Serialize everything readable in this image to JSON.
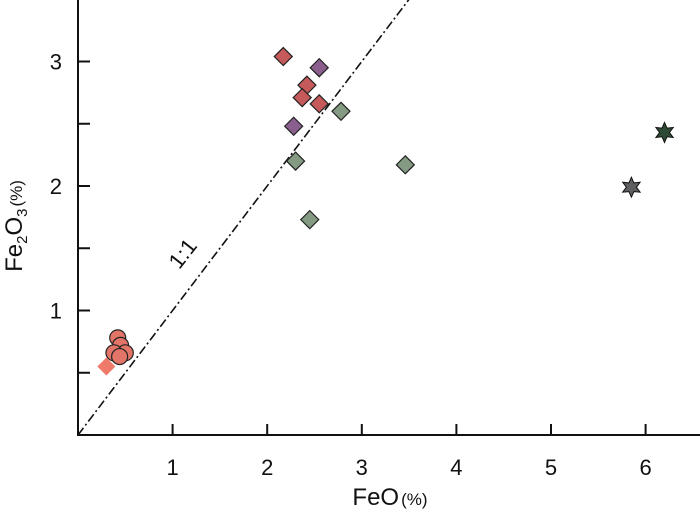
{
  "chart_data": {
    "type": "scatter",
    "title": "",
    "xlabel": {
      "text": "FeO",
      "unit": "(%)"
    },
    "ylabel": {
      "base": "Fe",
      "sub1": "2",
      "mid": "O",
      "sub2": "3",
      "unit": "(%)"
    },
    "xlim": [
      0,
      6.4
    ],
    "ylim": [
      0,
      3.5
    ],
    "xticks": [
      1,
      2,
      3,
      4,
      5,
      6
    ],
    "xtick_labels": [
      "1",
      "2",
      "3",
      "4",
      "5",
      "6"
    ],
    "yticks": [
      0.5,
      1,
      1.5,
      2,
      2.5,
      3
    ],
    "ytick_labels": [
      "",
      "1",
      "",
      "2",
      "",
      "3"
    ],
    "grid": false,
    "reference_line": {
      "label": "1:1",
      "slope": 1,
      "intercept": 0
    },
    "series": [
      {
        "marker": "circle",
        "color": "#e27468",
        "points": [
          [
            0.42,
            0.78
          ],
          [
            0.45,
            0.72
          ],
          [
            0.5,
            0.66
          ],
          [
            0.38,
            0.66
          ],
          [
            0.44,
            0.63
          ]
        ]
      },
      {
        "marker": "diamond",
        "color": "#f07a6a",
        "stroke": "none",
        "points": [
          [
            0.3,
            0.55
          ]
        ]
      },
      {
        "marker": "diamond",
        "color": "#c65a5a",
        "points": [
          [
            2.17,
            3.04
          ],
          [
            2.42,
            2.81
          ],
          [
            2.37,
            2.71
          ],
          [
            2.55,
            2.66
          ]
        ]
      },
      {
        "marker": "diamond",
        "color": "#8a5f8e",
        "points": [
          [
            2.55,
            2.95
          ],
          [
            2.28,
            2.48
          ]
        ]
      },
      {
        "marker": "diamond",
        "color": "#849a82",
        "points": [
          [
            2.78,
            2.6
          ],
          [
            2.3,
            2.2
          ],
          [
            3.46,
            2.17
          ],
          [
            2.45,
            1.73
          ]
        ]
      },
      {
        "marker": "star",
        "color": "#5e5e60",
        "points": [
          [
            5.85,
            1.99
          ]
        ]
      },
      {
        "marker": "star",
        "color": "#2e4a34",
        "points": [
          [
            6.2,
            2.43
          ]
        ]
      }
    ]
  }
}
